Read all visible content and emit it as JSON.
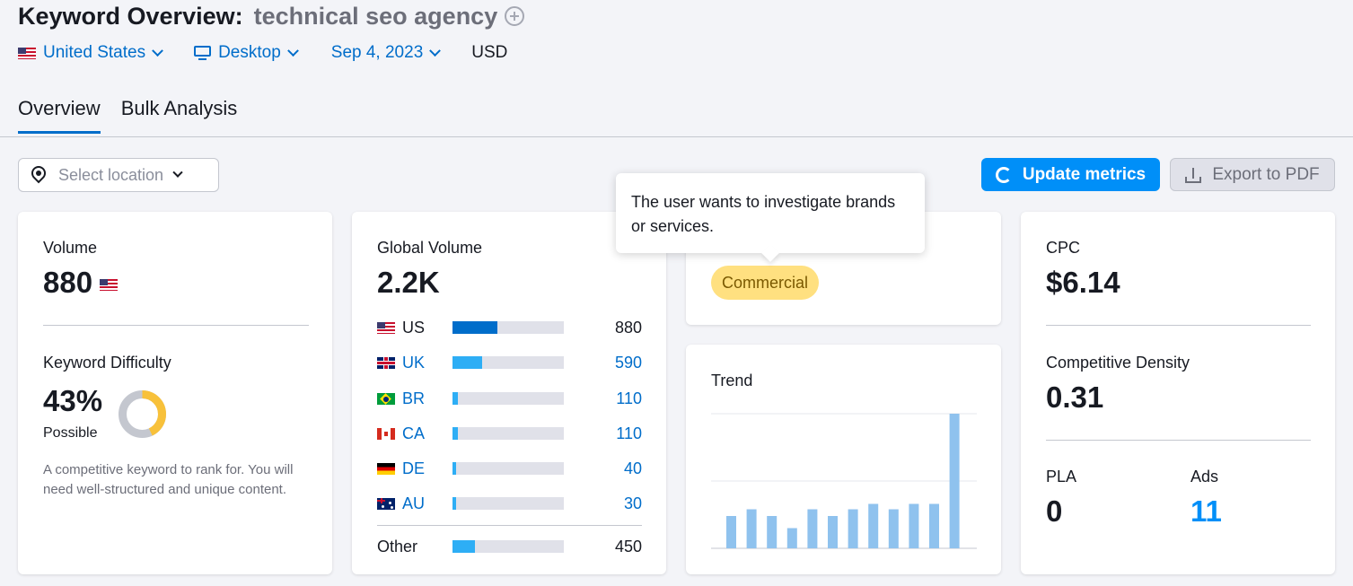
{
  "header": {
    "title_prefix": "Keyword Overview:",
    "keyword": "technical seo agency"
  },
  "filters": {
    "country": "United States",
    "device": "Desktop",
    "date": "Sep 4, 2023",
    "currency": "USD"
  },
  "tabs": [
    {
      "label": "Overview",
      "active": true
    },
    {
      "label": "Bulk Analysis",
      "active": false
    }
  ],
  "location_select": {
    "placeholder": "Select location"
  },
  "buttons": {
    "update": "Update metrics",
    "export": "Export to PDF"
  },
  "volume": {
    "label": "Volume",
    "value": "880"
  },
  "keyword_difficulty": {
    "label": "Keyword Difficulty",
    "value": "43%",
    "level": "Possible",
    "percent": 43,
    "description": "A competitive keyword to rank for. You will need well-structured and unique content."
  },
  "global_volume": {
    "label": "Global Volume",
    "value": "2.2K",
    "rows": [
      {
        "code": "US",
        "value": "880",
        "fraction": 0.4,
        "flag": "flag-us"
      },
      {
        "code": "UK",
        "value": "590",
        "fraction": 0.27,
        "flag": "flag-uk"
      },
      {
        "code": "BR",
        "value": "110",
        "fraction": 0.05,
        "flag": "flag-br"
      },
      {
        "code": "CA",
        "value": "110",
        "fraction": 0.05,
        "flag": "flag-ca"
      },
      {
        "code": "DE",
        "value": "40",
        "fraction": 0.03,
        "flag": "flag-de"
      },
      {
        "code": "AU",
        "value": "30",
        "fraction": 0.03,
        "flag": "flag-au"
      }
    ],
    "other": {
      "label": "Other",
      "value": "450",
      "fraction": 0.2
    }
  },
  "intent": {
    "badge": "Commercial",
    "tooltip": "The user wants to investigate brands or services."
  },
  "trend": {
    "label": "Trend",
    "values": [
      0.24,
      0.29,
      0.24,
      0.15,
      0.29,
      0.24,
      0.29,
      0.33,
      0.29,
      0.33,
      0.33,
      1.0
    ]
  },
  "cpc": {
    "label": "CPC",
    "value": "$6.14"
  },
  "competitive_density": {
    "label": "Competitive Density",
    "value": "0.31"
  },
  "pla": {
    "label": "PLA",
    "value": "0"
  },
  "ads": {
    "label": "Ads",
    "value": "11"
  },
  "colors": {
    "accent": "#006dca",
    "button": "#008ff8",
    "badge": "#ffe080",
    "kd_fill": "#f8c13a",
    "kd_track": "#c4c7cf",
    "trend_bar": "#8fc2ee"
  }
}
